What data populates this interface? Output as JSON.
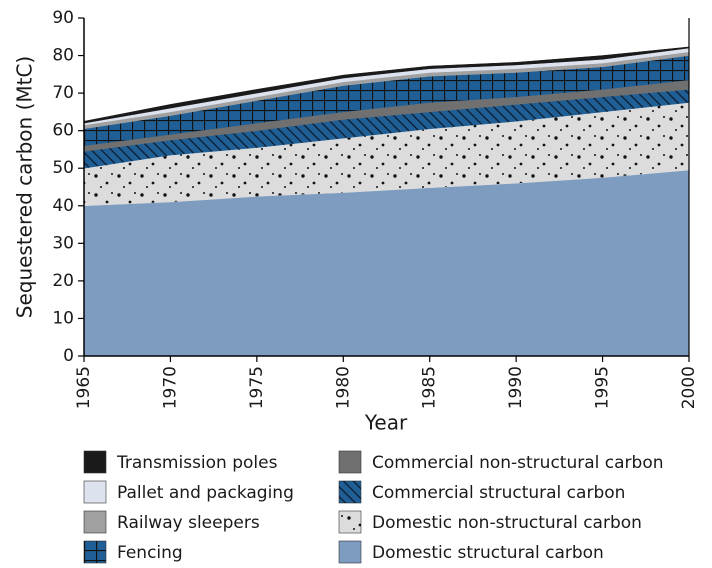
{
  "chart_data": {
    "type": "stacked_area",
    "ylabel": "Sequestered carbon (MtC)",
    "xlabel": "Year",
    "x": [
      1965,
      1970,
      1975,
      1980,
      1985,
      1990,
      1995,
      2000
    ],
    "xlim": [
      1965,
      2000
    ],
    "xticks": [
      1965,
      1970,
      1975,
      1980,
      1985,
      1990,
      1995,
      2000
    ],
    "ylim": [
      0,
      90
    ],
    "yticks": [
      0,
      10,
      20,
      30,
      40,
      50,
      60,
      70,
      80,
      90
    ],
    "series": [
      {
        "name": "Domestic structural carbon",
        "color": "#7d9cc0",
        "values": [
          40,
          41,
          42.5,
          43.5,
          44.8,
          46,
          47.5,
          49.5
        ]
      },
      {
        "name": "Domestic non-structural carbon",
        "color": "#dcdcdc",
        "pattern": "dots",
        "values": [
          10,
          12.5,
          13,
          14.5,
          15.7,
          16.5,
          17.5,
          18
        ]
      },
      {
        "name": "Commercial structural carbon",
        "color": "#1f5f96",
        "pattern": "hatch",
        "values": [
          4.5,
          4,
          4.5,
          5,
          4.5,
          4.5,
          4,
          3.5
        ]
      },
      {
        "name": "Commercial non-structural carbon",
        "color": "#707070",
        "values": [
          1.5,
          1.5,
          2,
          2,
          2.5,
          2,
          2,
          2.5
        ]
      },
      {
        "name": "Fencing",
        "color": "#1f5f96",
        "pattern": "grid",
        "values": [
          4.5,
          5,
          6,
          7,
          7,
          6.5,
          6,
          6.5
        ]
      },
      {
        "name": "Railway sleepers",
        "color": "#a0a0a0",
        "values": [
          1,
          1,
          1,
          1,
          1,
          1,
          1,
          1
        ]
      },
      {
        "name": "Pallet and packaging",
        "color": "#dde3ee",
        "values": [
          0.5,
          1,
          1,
          1,
          1,
          1,
          1,
          1
        ]
      },
      {
        "name": "Transmission poles",
        "color": "#1a1a1a",
        "values": [
          0.5,
          1,
          1,
          0.8,
          0.7,
          0.7,
          1,
          0.3
        ]
      }
    ]
  }
}
